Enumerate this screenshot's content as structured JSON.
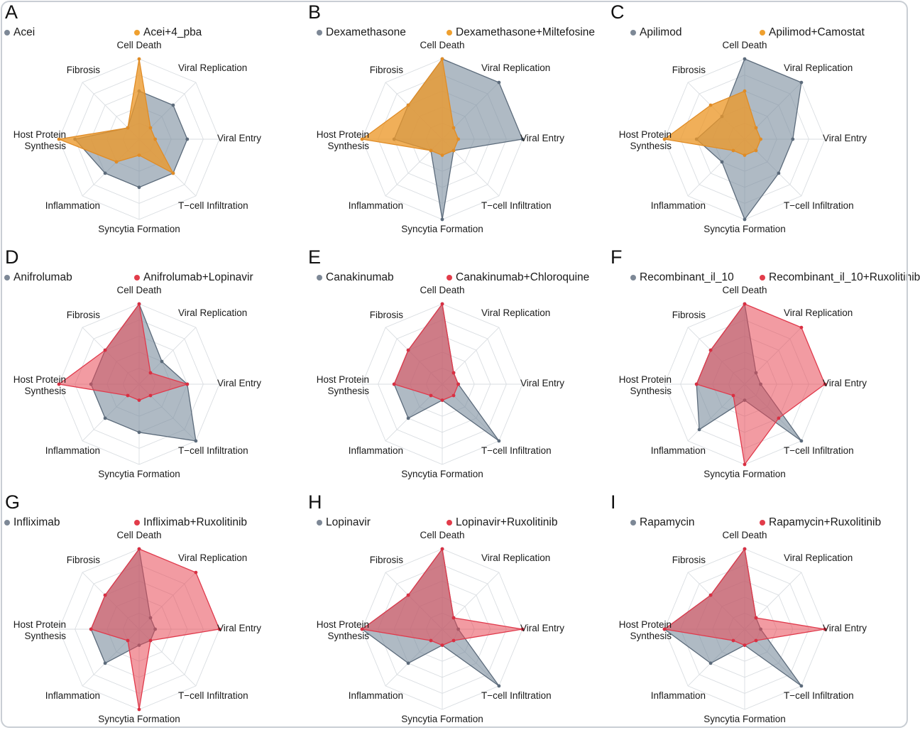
{
  "figure": {
    "background": "#ffffff",
    "frame_border_color": "#c9ced4"
  },
  "chart_data": {
    "type": "radar",
    "axes": [
      "Cell Death",
      "Viral Replication",
      "Viral Entry",
      "T−cell Infiltration",
      "Syncytia Formation",
      "Inflammation",
      "Host Protein Synthesis",
      "Fibrosis"
    ],
    "scale": [
      0,
      1
    ],
    "grid_levels": [
      0.2,
      0.4,
      0.6,
      0.8,
      1.0
    ],
    "grid_color": "#d9dde1",
    "colors": {
      "gray": {
        "fill": "rgba(126,143,160,0.62)",
        "stroke": "#5c6b7b",
        "dot": "#5c6b7b",
        "legend_dot": "#7d8896"
      },
      "orange": {
        "fill": "rgba(236,152,42,0.78)",
        "stroke": "#e08c26",
        "dot": "#e08c26",
        "legend_dot": "#efa02f"
      },
      "red": {
        "fill": "rgba(232,72,85,0.55)",
        "stroke": "#e03a4c",
        "dot": "#d92f42",
        "legend_dot": "#e23c4a"
      }
    },
    "panels": [
      {
        "letter": "A",
        "series": [
          {
            "name": "Acei",
            "color": "gray",
            "values": [
              0.6,
              0.6,
              0.6,
              0.6,
              0.6,
              0.6,
              0.8,
              0.2
            ]
          },
          {
            "name": "Acei+4_pba",
            "color": "orange",
            "values": [
              1.0,
              0.2,
              0.2,
              0.6,
              0.2,
              0.4,
              1.0,
              0.2
            ]
          }
        ]
      },
      {
        "letter": "B",
        "series": [
          {
            "name": "Dexamethasone",
            "color": "gray",
            "values": [
              1.0,
              1.0,
              1.0,
              0.2,
              1.0,
              0.2,
              0.6,
              0.6
            ]
          },
          {
            "name": "Dexamethasone+Miltefosine",
            "color": "orange",
            "values": [
              1.0,
              0.2,
              0.2,
              0.2,
              0.2,
              0.2,
              1.0,
              0.6
            ]
          }
        ]
      },
      {
        "letter": "C",
        "series": [
          {
            "name": "Apilimod",
            "color": "gray",
            "values": [
              1.0,
              1.0,
              0.6,
              0.6,
              1.0,
              0.4,
              0.6,
              0.4
            ]
          },
          {
            "name": "Apilimod+Camostat",
            "color": "orange",
            "values": [
              0.6,
              0.2,
              0.2,
              0.2,
              0.2,
              0.2,
              1.0,
              0.6
            ]
          }
        ]
      },
      {
        "letter": "D",
        "series": [
          {
            "name": "Anifrolumab",
            "color": "gray",
            "values": [
              1.0,
              0.4,
              0.6,
              1.0,
              0.6,
              0.6,
              0.6,
              0.6
            ]
          },
          {
            "name": "Anifrolumab+Lopinavir",
            "color": "red",
            "values": [
              1.0,
              0.2,
              0.6,
              0.2,
              0.2,
              0.2,
              1.0,
              0.6
            ]
          }
        ]
      },
      {
        "letter": "E",
        "series": [
          {
            "name": "Canakinumab",
            "color": "gray",
            "values": [
              1.0,
              0.2,
              0.2,
              1.0,
              0.2,
              0.6,
              0.6,
              0.6
            ]
          },
          {
            "name": "Canakinumab+Chloroquine",
            "color": "red",
            "values": [
              1.0,
              0.2,
              0.2,
              0.2,
              0.2,
              0.2,
              0.6,
              0.6
            ]
          }
        ]
      },
      {
        "letter": "F",
        "series": [
          {
            "name": "Recombinant_il_10",
            "color": "gray",
            "values": [
              1.0,
              0.2,
              0.2,
              1.0,
              0.2,
              0.8,
              0.6,
              0.6
            ]
          },
          {
            "name": "Recombinant_il_10+Ruxolitinib",
            "color": "red",
            "values": [
              1.0,
              1.0,
              1.0,
              0.6,
              1.0,
              0.2,
              0.6,
              0.6
            ]
          }
        ]
      },
      {
        "letter": "G",
        "series": [
          {
            "name": "Infliximab",
            "color": "gray",
            "values": [
              1.0,
              0.2,
              0.2,
              0.2,
              0.2,
              0.6,
              0.6,
              0.6
            ]
          },
          {
            "name": "Infliximab+Ruxolitinib",
            "color": "red",
            "values": [
              1.0,
              1.0,
              1.0,
              0.2,
              1.0,
              0.2,
              0.6,
              0.6
            ]
          }
        ]
      },
      {
        "letter": "H",
        "series": [
          {
            "name": "Lopinavir",
            "color": "gray",
            "values": [
              1.0,
              0.2,
              0.2,
              1.0,
              0.2,
              0.6,
              1.0,
              0.6
            ]
          },
          {
            "name": "Lopinavir+Ruxolitinib",
            "color": "red",
            "values": [
              1.0,
              0.2,
              1.0,
              0.2,
              0.2,
              0.2,
              1.0,
              0.6
            ]
          }
        ]
      },
      {
        "letter": "I",
        "series": [
          {
            "name": "Rapamycin",
            "color": "gray",
            "values": [
              1.0,
              0.2,
              0.2,
              1.0,
              0.2,
              0.6,
              1.0,
              0.6
            ]
          },
          {
            "name": "Rapamycin+Ruxolitinib",
            "color": "red",
            "values": [
              1.0,
              0.2,
              1.0,
              0.2,
              0.2,
              0.2,
              1.0,
              0.6
            ]
          }
        ]
      }
    ]
  }
}
